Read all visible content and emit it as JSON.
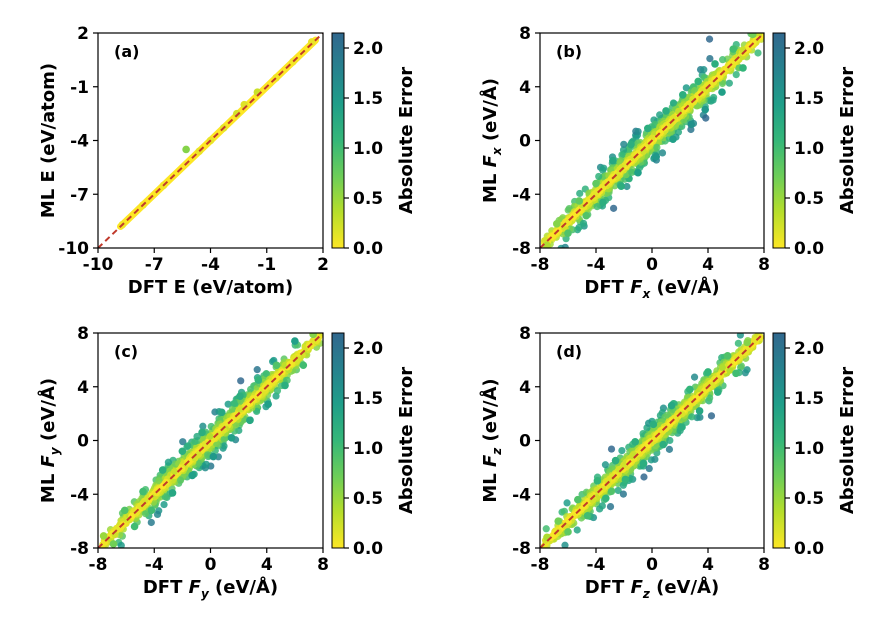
{
  "colors": {
    "colormap": [
      "#fde725",
      "#b5de2b",
      "#6ece58",
      "#35b779",
      "#1f9e89",
      "#26828e",
      "#31688e"
    ],
    "identity_line": "#c0392b",
    "axis": "#000000"
  },
  "colorbar": {
    "label": "Absolute Error",
    "range": [
      0,
      2.15
    ],
    "ticks": [
      "0.0",
      "0.5",
      "1.0",
      "1.5",
      "2.0"
    ]
  },
  "chart_data": [
    {
      "type": "scatter",
      "panel_label": "(a)",
      "xlabel": "DFT E (eV/atom)",
      "ylabel": "ML E (eV/atom)",
      "xlim": [
        -10,
        2
      ],
      "ylim": [
        -10,
        2
      ],
      "xticks": [
        "-10",
        "-7",
        "-4",
        "-1",
        "2"
      ],
      "yticks": [
        "-10",
        "-7",
        "-4",
        "-1",
        "2"
      ],
      "identity_line": true,
      "points": [
        [
          -8.7,
          -8.7,
          0.05
        ],
        [
          -7.6,
          -7.6,
          0.04
        ],
        [
          -6.5,
          -6.5,
          0.05
        ],
        [
          -5.3,
          -4.5,
          0.6
        ],
        [
          -4.6,
          -4.6,
          0.1
        ],
        [
          -4,
          -4,
          0.1
        ],
        [
          -3.3,
          -3.3,
          0.12
        ],
        [
          -2.6,
          -2.5,
          0.2
        ],
        [
          -2.2,
          -2,
          0.15
        ],
        [
          -1.5,
          -1.3,
          0.25
        ],
        [
          -0.5,
          -0.5,
          0.05
        ],
        [
          0.4,
          0.4,
          0.05
        ],
        [
          1.4,
          1.5,
          0.1
        ]
      ]
    },
    {
      "type": "scatter",
      "panel_label": "(b)",
      "xlabel_prefix": "DFT ",
      "xlabel_var": "F",
      "xlabel_sub": "x",
      "xlabel_unit": " (eV/Å)",
      "ylabel_prefix": "ML ",
      "ylabel_var": "F",
      "ylabel_sub": "x",
      "ylabel_unit": " (eV/Å)",
      "xlim": [
        -8,
        8
      ],
      "ylim": [
        -8,
        8
      ],
      "xticks": [
        "-8",
        "-4",
        "0",
        "4",
        "8"
      ],
      "yticks": [
        "-8",
        "-4",
        "0",
        "4",
        "8"
      ],
      "identity_line": true,
      "points": [
        [
          -7.5,
          -7.8,
          0.4
        ],
        [
          -6.8,
          -6.2,
          0.6
        ],
        [
          -6,
          -6.9,
          0.9
        ],
        [
          -5.2,
          -4.5,
          0.8
        ],
        [
          -4.7,
          -5.6,
          0.9
        ],
        [
          -4,
          -3.2,
          0.8
        ],
        [
          -3.5,
          -4.6,
          1.2
        ],
        [
          -2.8,
          -1.5,
          1.3
        ],
        [
          -2.2,
          -3.4,
          1.2
        ],
        [
          -1.5,
          -0.3,
          1.2
        ],
        [
          -1,
          -2.4,
          1.4
        ],
        [
          -0.3,
          0.9,
          1.2
        ],
        [
          0.3,
          -1.2,
          1.5
        ],
        [
          1,
          2.2,
          1.2
        ],
        [
          1.5,
          0.1,
          1.4
        ],
        [
          2.2,
          3.4,
          1.2
        ],
        [
          2.8,
          1.2,
          1.6
        ],
        [
          3.3,
          4.4,
          1.1
        ],
        [
          3.8,
          2.3,
          1.5
        ],
        [
          4.5,
          5.7,
          1.2
        ],
        [
          5,
          3.6,
          1.4
        ],
        [
          5.8,
          6.8,
          1
        ],
        [
          6.5,
          5.4,
          1.1
        ],
        [
          7.2,
          7.9,
          0.7
        ]
      ]
    },
    {
      "type": "scatter",
      "panel_label": "(c)",
      "xlabel_prefix": "DFT ",
      "xlabel_var": "F",
      "xlabel_sub": "y",
      "xlabel_unit": " (eV/Å)",
      "ylabel_prefix": "ML ",
      "ylabel_var": "F",
      "ylabel_sub": "y",
      "ylabel_unit": " (eV/Å)",
      "xlim": [
        -8,
        8
      ],
      "ylim": [
        -8,
        8
      ],
      "xticks": [
        "-8",
        "-4",
        "0",
        "4",
        "8"
      ],
      "yticks": [
        "-8",
        "-4",
        "0",
        "4",
        "8"
      ],
      "identity_line": true,
      "points": [
        [
          -7.6,
          -7.1,
          0.5
        ],
        [
          -6.9,
          -7.7,
          0.7
        ],
        [
          -6.1,
          -5.2,
          0.9
        ],
        [
          -5.4,
          -6.4,
          1
        ],
        [
          -4.8,
          -3.8,
          1
        ],
        [
          -4.2,
          -5.2,
          1
        ],
        [
          -3.4,
          -2.2,
          1.2
        ],
        [
          -2.7,
          -3.9,
          1.3
        ],
        [
          -2,
          -0.8,
          1.2
        ],
        [
          -1.3,
          -2.6,
          1.4
        ],
        [
          -0.6,
          0.6,
          1.2
        ],
        [
          0.2,
          -1.2,
          1.5
        ],
        [
          0.8,
          2.1,
          1.3
        ],
        [
          1.5,
          0.2,
          1.4
        ],
        [
          2.1,
          3.3,
          1.2
        ],
        [
          2.8,
          1.5,
          1.3
        ],
        [
          3.4,
          4.5,
          1.1
        ],
        [
          4.1,
          2.7,
          1.4
        ],
        [
          4.7,
          5.6,
          0.9
        ],
        [
          5.3,
          4.1,
          1.2
        ],
        [
          6,
          7.4,
          1.4
        ],
        [
          6.6,
          5.6,
          1
        ],
        [
          7.3,
          7.9,
          0.6
        ]
      ]
    },
    {
      "type": "scatter",
      "panel_label": "(d)",
      "xlabel_prefix": "DFT ",
      "xlabel_var": "F",
      "xlabel_sub": "z",
      "xlabel_unit": " (eV/Å)",
      "ylabel_prefix": "ML ",
      "ylabel_var": "F",
      "ylabel_sub": "z",
      "ylabel_unit": " (eV/Å)",
      "xlim": [
        -8,
        8
      ],
      "ylim": [
        -8,
        8
      ],
      "xticks": [
        "-8",
        "-4",
        "0",
        "4",
        "8"
      ],
      "yticks": [
        "-8",
        "-4",
        "0",
        "4",
        "8"
      ],
      "identity_line": true,
      "points": [
        [
          -7.5,
          -7.2,
          0.4
        ],
        [
          -6.7,
          -6,
          0.7
        ],
        [
          -6,
          -6.8,
          0.8
        ],
        [
          -5.3,
          -4.4,
          0.9
        ],
        [
          -4.6,
          -5.6,
          1
        ],
        [
          -3.9,
          -3,
          1.1
        ],
        [
          -3.3,
          -4.3,
          1.1
        ],
        [
          -2.6,
          -1.5,
          1.2
        ],
        [
          -1.9,
          -2.9,
          1.1
        ],
        [
          -1.2,
          -0.1,
          1.2
        ],
        [
          -0.6,
          -1.7,
          1.2
        ],
        [
          0.1,
          1.2,
          1.2
        ],
        [
          0.8,
          -0.3,
          1.2
        ],
        [
          1.4,
          2.6,
          1.3
        ],
        [
          2.1,
          1,
          1.2
        ],
        [
          2.7,
          3.8,
          1.1
        ],
        [
          3.4,
          2.2,
          1.3
        ],
        [
          4,
          5.1,
          1.1
        ],
        [
          4.7,
          3.6,
          1.2
        ],
        [
          5.4,
          6.3,
          0.9
        ],
        [
          6,
          5,
          1
        ],
        [
          6.8,
          7.3,
          0.6
        ]
      ]
    }
  ]
}
